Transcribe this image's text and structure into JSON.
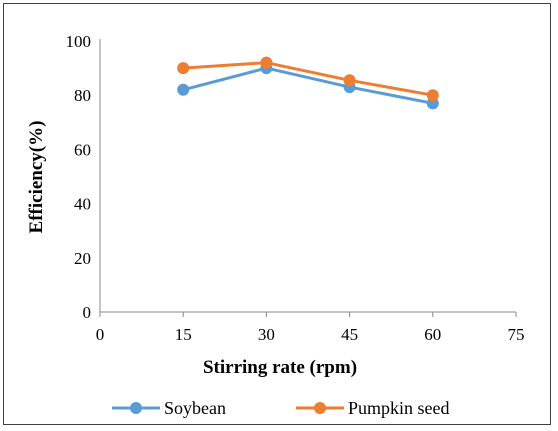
{
  "chart_data": {
    "type": "line",
    "xlabel": "Stirring rate (rpm)",
    "ylabel": "Efficiency(%)",
    "xlim": [
      0,
      75
    ],
    "ylim": [
      0,
      100
    ],
    "x_ticks": [
      "0",
      "15",
      "30",
      "45",
      "60",
      "75"
    ],
    "y_ticks": [
      "0",
      "20",
      "40",
      "60",
      "80",
      "100"
    ],
    "x": [
      15,
      30,
      45,
      60
    ],
    "series": [
      {
        "name": "Soybean",
        "values": [
          82,
          90,
          83,
          77
        ],
        "color": "#5B9BD5"
      },
      {
        "name": "Pumpkin seed",
        "values": [
          90,
          92,
          85.5,
          80
        ],
        "color": "#ED7D31"
      }
    ],
    "legend_position": "bottom",
    "grid": false
  }
}
